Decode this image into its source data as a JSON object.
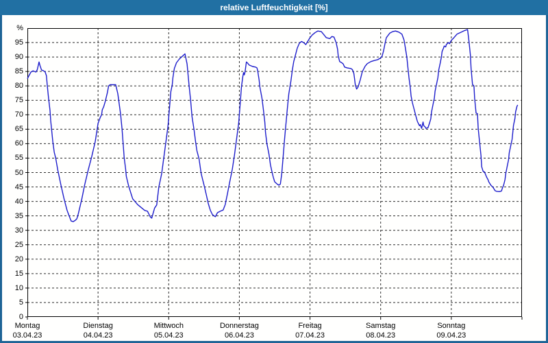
{
  "window": {
    "title": "relative Luftfeuchtigkeit [%]"
  },
  "colors": {
    "frame": "#1e6496",
    "titlebar": "#2170a3",
    "title_text": "#ffffff",
    "plot_background": "#fffffe",
    "plot_border": "#000000",
    "gridline": "#2a2a2a",
    "line": "#1c1ccb",
    "label_text": "#000000"
  },
  "chart_data": {
    "type": "line",
    "title": "relative Luftfeuchtigkeit [%]",
    "ylabel": "%",
    "y_unit_label": "%",
    "ylim": [
      0,
      100
    ],
    "y_ticks": [
      95,
      90,
      85,
      80,
      75,
      70,
      65,
      60,
      55,
      50,
      45,
      40,
      35,
      30,
      25,
      20,
      15,
      10,
      5,
      0
    ],
    "grid": "dashed",
    "legend": "none",
    "x_days": [
      {
        "label": "Montag",
        "date": "03.04.23"
      },
      {
        "label": "Dienstag",
        "date": "04.04.23"
      },
      {
        "label": "Mittwoch",
        "date": "05.04.23"
      },
      {
        "label": "Donnerstag",
        "date": "06.04.23"
      },
      {
        "label": "Freitag",
        "date": "07.04.23"
      },
      {
        "label": "Samstag",
        "date": "08.04.23"
      },
      {
        "label": "Sonntag",
        "date": "09.04.23"
      }
    ],
    "xlim_days": [
      0,
      7
    ],
    "series": [
      {
        "name": "relative Luftfeuchtigkeit",
        "points": [
          [
            0.0,
            82.5
          ],
          [
            0.02,
            83.5
          ],
          [
            0.05,
            84.8
          ],
          [
            0.08,
            85.2
          ],
          [
            0.1,
            85.0
          ],
          [
            0.12,
            84.8
          ],
          [
            0.14,
            85.6
          ],
          [
            0.165,
            88.3
          ],
          [
            0.18,
            86.9
          ],
          [
            0.2,
            85.5
          ],
          [
            0.23,
            85.2
          ],
          [
            0.25,
            84.9
          ],
          [
            0.27,
            83.5
          ],
          [
            0.28,
            80.4
          ],
          [
            0.3,
            75.7
          ],
          [
            0.32,
            71.5
          ],
          [
            0.33,
            68.0
          ],
          [
            0.36,
            60.7
          ],
          [
            0.38,
            57.0
          ],
          [
            0.4,
            55.0
          ],
          [
            0.43,
            50.8
          ],
          [
            0.475,
            45.6
          ],
          [
            0.52,
            40.8
          ],
          [
            0.56,
            37.0
          ],
          [
            0.59,
            35.0
          ],
          [
            0.62,
            33.2
          ],
          [
            0.65,
            33.0
          ],
          [
            0.68,
            33.5
          ],
          [
            0.7,
            34.0
          ],
          [
            0.72,
            35.7
          ],
          [
            0.77,
            40.8
          ],
          [
            0.81,
            45.6
          ],
          [
            0.86,
            50.8
          ],
          [
            0.91,
            55.5
          ],
          [
            0.96,
            60.7
          ],
          [
            0.99,
            65.4
          ],
          [
            1.0,
            67.0
          ],
          [
            1.03,
            69.0
          ],
          [
            1.05,
            70.0
          ],
          [
            1.06,
            71.7
          ],
          [
            1.08,
            72.8
          ],
          [
            1.1,
            74.5
          ],
          [
            1.13,
            77.5
          ],
          [
            1.15,
            80.0
          ],
          [
            1.17,
            80.4
          ],
          [
            1.25,
            80.4
          ],
          [
            1.28,
            77.3
          ],
          [
            1.32,
            70.1
          ],
          [
            1.34,
            65.0
          ],
          [
            1.37,
            55.1
          ],
          [
            1.39,
            51.2
          ],
          [
            1.4,
            48.7
          ],
          [
            1.43,
            45.6
          ],
          [
            1.46,
            43.2
          ],
          [
            1.49,
            40.9
          ],
          [
            1.56,
            38.9
          ],
          [
            1.62,
            37.7
          ],
          [
            1.66,
            36.9
          ],
          [
            1.7,
            36.6
          ],
          [
            1.74,
            34.6
          ],
          [
            1.76,
            34.2
          ],
          [
            1.8,
            37.7
          ],
          [
            1.83,
            38.8
          ],
          [
            1.86,
            44.9
          ],
          [
            1.9,
            49.6
          ],
          [
            1.93,
            55.1
          ],
          [
            1.96,
            60.6
          ],
          [
            1.99,
            66.2
          ],
          [
            2.01,
            72.0
          ],
          [
            2.03,
            78.0
          ],
          [
            2.05,
            80.3
          ],
          [
            2.06,
            83.0
          ],
          [
            2.08,
            86.0
          ],
          [
            2.11,
            88.0
          ],
          [
            2.15,
            89.3
          ],
          [
            2.19,
            90.2
          ],
          [
            2.23,
            91.1
          ],
          [
            2.26,
            87.6
          ],
          [
            2.29,
            79.7
          ],
          [
            2.31,
            75.0
          ],
          [
            2.33,
            69.4
          ],
          [
            2.36,
            64.6
          ],
          [
            2.38,
            60.7
          ],
          [
            2.4,
            57.5
          ],
          [
            2.43,
            54.7
          ],
          [
            2.46,
            49.6
          ],
          [
            2.5,
            45.6
          ],
          [
            2.53,
            42.5
          ],
          [
            2.56,
            39.3
          ],
          [
            2.59,
            36.9
          ],
          [
            2.62,
            35.4
          ],
          [
            2.66,
            34.7
          ],
          [
            2.69,
            36.1
          ],
          [
            2.73,
            36.6
          ],
          [
            2.77,
            37.0
          ],
          [
            2.8,
            38.9
          ],
          [
            2.83,
            42.5
          ],
          [
            2.86,
            46.3
          ],
          [
            2.9,
            51.1
          ],
          [
            2.93,
            55.9
          ],
          [
            2.96,
            61.5
          ],
          [
            2.99,
            67.0
          ],
          [
            3.01,
            73.4
          ],
          [
            3.03,
            79.7
          ],
          [
            3.05,
            83.4
          ],
          [
            3.06,
            84.6
          ],
          [
            3.07,
            83.8
          ],
          [
            3.08,
            84.8
          ],
          [
            3.1,
            88.3
          ],
          [
            3.12,
            87.8
          ],
          [
            3.14,
            87.2
          ],
          [
            3.19,
            86.7
          ],
          [
            3.23,
            86.5
          ],
          [
            3.25,
            86.2
          ],
          [
            3.26,
            85.2
          ],
          [
            3.28,
            82.0
          ],
          [
            3.29,
            79.7
          ],
          [
            3.32,
            75.8
          ],
          [
            3.34,
            71.8
          ],
          [
            3.36,
            67.4
          ],
          [
            3.37,
            63.9
          ],
          [
            3.39,
            59.9
          ],
          [
            3.42,
            56.3
          ],
          [
            3.44,
            52.7
          ],
          [
            3.46,
            50.4
          ],
          [
            3.48,
            48.4
          ],
          [
            3.5,
            46.8
          ],
          [
            3.53,
            46.1
          ],
          [
            3.56,
            45.6
          ],
          [
            3.58,
            46.0
          ],
          [
            3.6,
            49.6
          ],
          [
            3.62,
            55.6
          ],
          [
            3.64,
            61.5
          ],
          [
            3.66,
            67.0
          ],
          [
            3.68,
            72.4
          ],
          [
            3.7,
            77.2
          ],
          [
            3.73,
            81.7
          ],
          [
            3.75,
            85.5
          ],
          [
            3.77,
            88.4
          ],
          [
            3.79,
            90.3
          ],
          [
            3.82,
            93.1
          ],
          [
            3.85,
            94.8
          ],
          [
            3.88,
            95.4
          ],
          [
            3.91,
            95.0
          ],
          [
            3.94,
            94.3
          ],
          [
            3.97,
            95.5
          ],
          [
            4.0,
            96.7
          ],
          [
            4.03,
            97.6
          ],
          [
            4.07,
            98.4
          ],
          [
            4.11,
            99.0
          ],
          [
            4.16,
            98.8
          ],
          [
            4.2,
            97.6
          ],
          [
            4.23,
            96.7
          ],
          [
            4.28,
            96.4
          ],
          [
            4.31,
            97.1
          ],
          [
            4.34,
            96.9
          ],
          [
            4.37,
            95.0
          ],
          [
            4.39,
            92.7
          ],
          [
            4.4,
            90.3
          ],
          [
            4.42,
            88.4
          ],
          [
            4.45,
            88.0
          ],
          [
            4.47,
            87.6
          ],
          [
            4.49,
            86.5
          ],
          [
            4.53,
            86.2
          ],
          [
            4.58,
            86.0
          ],
          [
            4.6,
            85.6
          ],
          [
            4.62,
            84.4
          ],
          [
            4.63,
            82.5
          ],
          [
            4.64,
            80.5
          ],
          [
            4.66,
            78.9
          ],
          [
            4.68,
            79.6
          ],
          [
            4.71,
            82.0
          ],
          [
            4.74,
            84.9
          ],
          [
            4.78,
            86.8
          ],
          [
            4.81,
            87.7
          ],
          [
            4.86,
            88.4
          ],
          [
            4.91,
            88.8
          ],
          [
            4.96,
            89.1
          ],
          [
            5.0,
            89.7
          ],
          [
            5.02,
            90.3
          ],
          [
            5.04,
            92.0
          ],
          [
            5.06,
            94.5
          ],
          [
            5.08,
            96.7
          ],
          [
            5.13,
            98.3
          ],
          [
            5.17,
            98.8
          ],
          [
            5.21,
            99.0
          ],
          [
            5.26,
            98.6
          ],
          [
            5.3,
            97.9
          ],
          [
            5.33,
            95.9
          ],
          [
            5.35,
            93.1
          ],
          [
            5.37,
            90.0
          ],
          [
            5.385,
            86.5
          ],
          [
            5.4,
            82.9
          ],
          [
            5.42,
            79.3
          ],
          [
            5.43,
            76.5
          ],
          [
            5.45,
            74.1
          ],
          [
            5.47,
            72.2
          ],
          [
            5.5,
            69.4
          ],
          [
            5.52,
            67.7
          ],
          [
            5.55,
            66.2
          ],
          [
            5.56,
            66.6
          ],
          [
            5.58,
            65.3
          ],
          [
            5.6,
            67.5
          ],
          [
            5.61,
            66.2
          ],
          [
            5.63,
            65.8
          ],
          [
            5.64,
            65.3
          ],
          [
            5.67,
            65.5
          ],
          [
            5.69,
            67.0
          ],
          [
            5.71,
            68.6
          ],
          [
            5.72,
            71.0
          ],
          [
            5.74,
            73.4
          ],
          [
            5.76,
            75.8
          ],
          [
            5.77,
            78.1
          ],
          [
            5.79,
            80.5
          ],
          [
            5.81,
            82.9
          ],
          [
            5.82,
            85.3
          ],
          [
            5.84,
            87.6
          ],
          [
            5.86,
            90.0
          ],
          [
            5.87,
            91.9
          ],
          [
            5.89,
            93.1
          ],
          [
            5.9,
            93.8
          ],
          [
            5.92,
            93.5
          ],
          [
            5.93,
            94.3
          ],
          [
            5.95,
            94.8
          ],
          [
            5.96,
            95.0
          ],
          [
            5.975,
            94.6
          ],
          [
            6.0,
            95.8
          ],
          [
            6.03,
            96.5
          ],
          [
            6.08,
            97.9
          ],
          [
            6.14,
            98.6
          ],
          [
            6.19,
            99.2
          ],
          [
            6.23,
            99.5
          ],
          [
            6.25,
            95.5
          ],
          [
            6.27,
            90.7
          ],
          [
            6.28,
            86.0
          ],
          [
            6.3,
            80.5
          ],
          [
            6.32,
            80.0
          ],
          [
            6.33,
            75.7
          ],
          [
            6.35,
            70.6
          ],
          [
            6.37,
            70.4
          ],
          [
            6.38,
            65.3
          ],
          [
            6.4,
            60.6
          ],
          [
            6.42,
            55.8
          ],
          [
            6.43,
            52.0
          ],
          [
            6.45,
            50.4
          ],
          [
            6.47,
            50.2
          ],
          [
            6.5,
            48.4
          ],
          [
            6.52,
            47.5
          ],
          [
            6.53,
            46.8
          ],
          [
            6.56,
            45.6
          ],
          [
            6.59,
            44.9
          ],
          [
            6.62,
            43.7
          ],
          [
            6.64,
            43.5
          ],
          [
            6.68,
            43.4
          ],
          [
            6.71,
            43.6
          ],
          [
            6.72,
            44.4
          ],
          [
            6.74,
            45.6
          ],
          [
            6.76,
            47.5
          ],
          [
            6.77,
            49.6
          ],
          [
            6.79,
            52.0
          ],
          [
            6.81,
            54.4
          ],
          [
            6.82,
            56.8
          ],
          [
            6.84,
            59.2
          ],
          [
            6.86,
            61.5
          ],
          [
            6.87,
            63.9
          ],
          [
            6.88,
            66.3
          ],
          [
            6.9,
            68.7
          ],
          [
            6.91,
            71.0
          ],
          [
            6.93,
            73.0
          ],
          [
            6.94,
            73.4
          ]
        ]
      }
    ]
  }
}
